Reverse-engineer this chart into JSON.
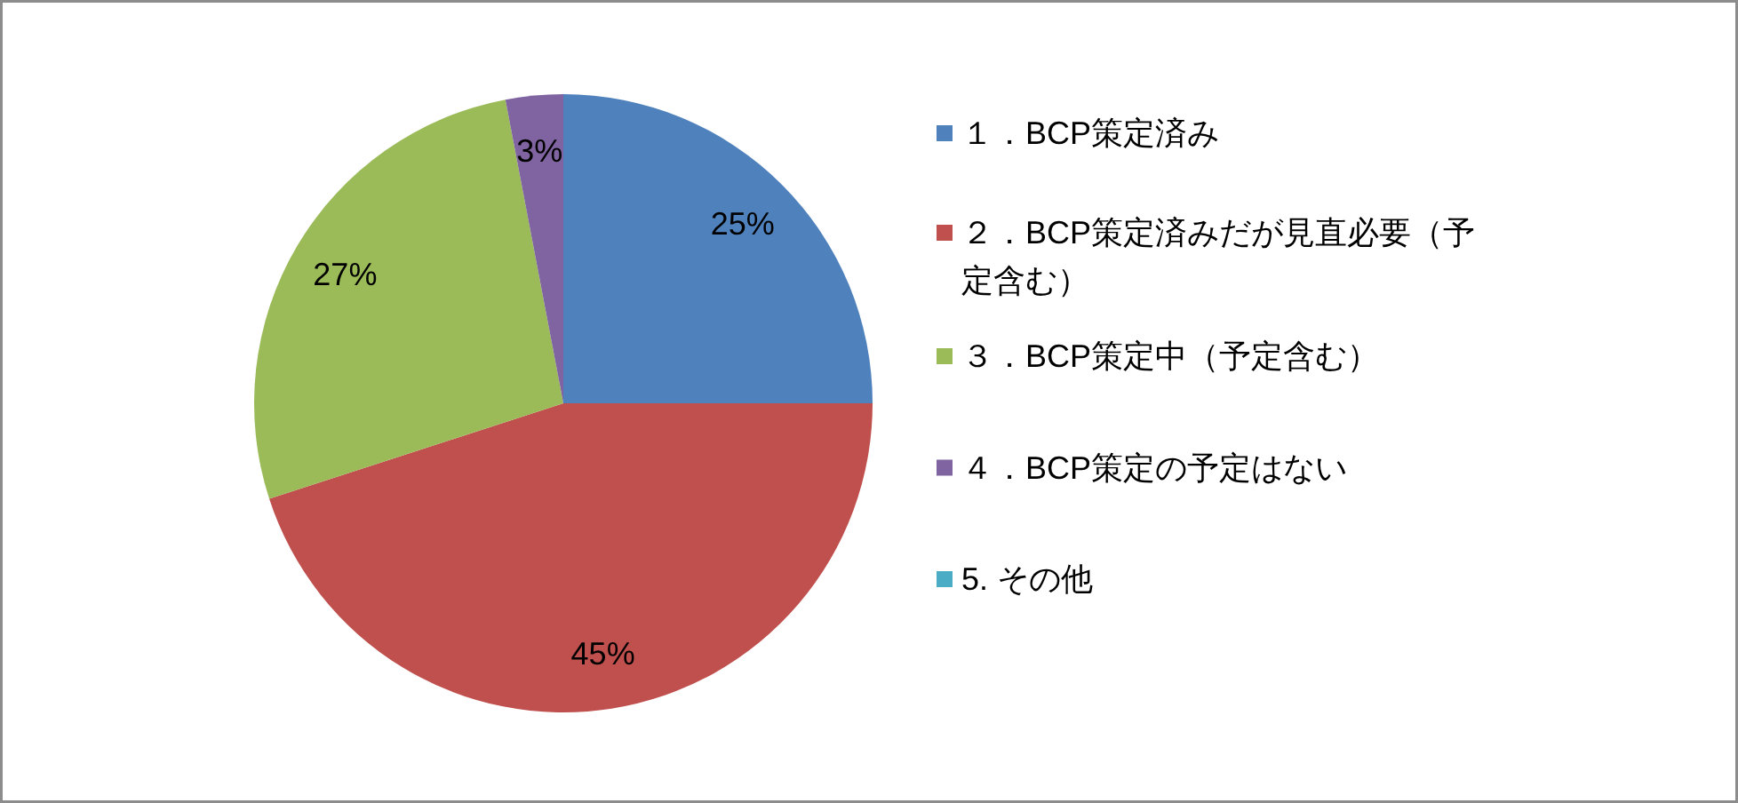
{
  "chart_data": {
    "type": "pie",
    "categories": [
      "１．BCP策定済み",
      "２．BCP策定済みだが見直必要（予定含む）",
      "３．BCP策定中（予定含む）",
      "４．BCP策定の予定はない",
      "5. その他"
    ],
    "values": [
      25,
      45,
      27,
      3,
      0
    ],
    "colors": [
      "#4f81bd",
      "#c0504d",
      "#9bbb59",
      "#8064a2",
      "#4bacc6"
    ],
    "value_labels": [
      "25%",
      "45%",
      "27%",
      "3%",
      null
    ],
    "legend": "right"
  }
}
